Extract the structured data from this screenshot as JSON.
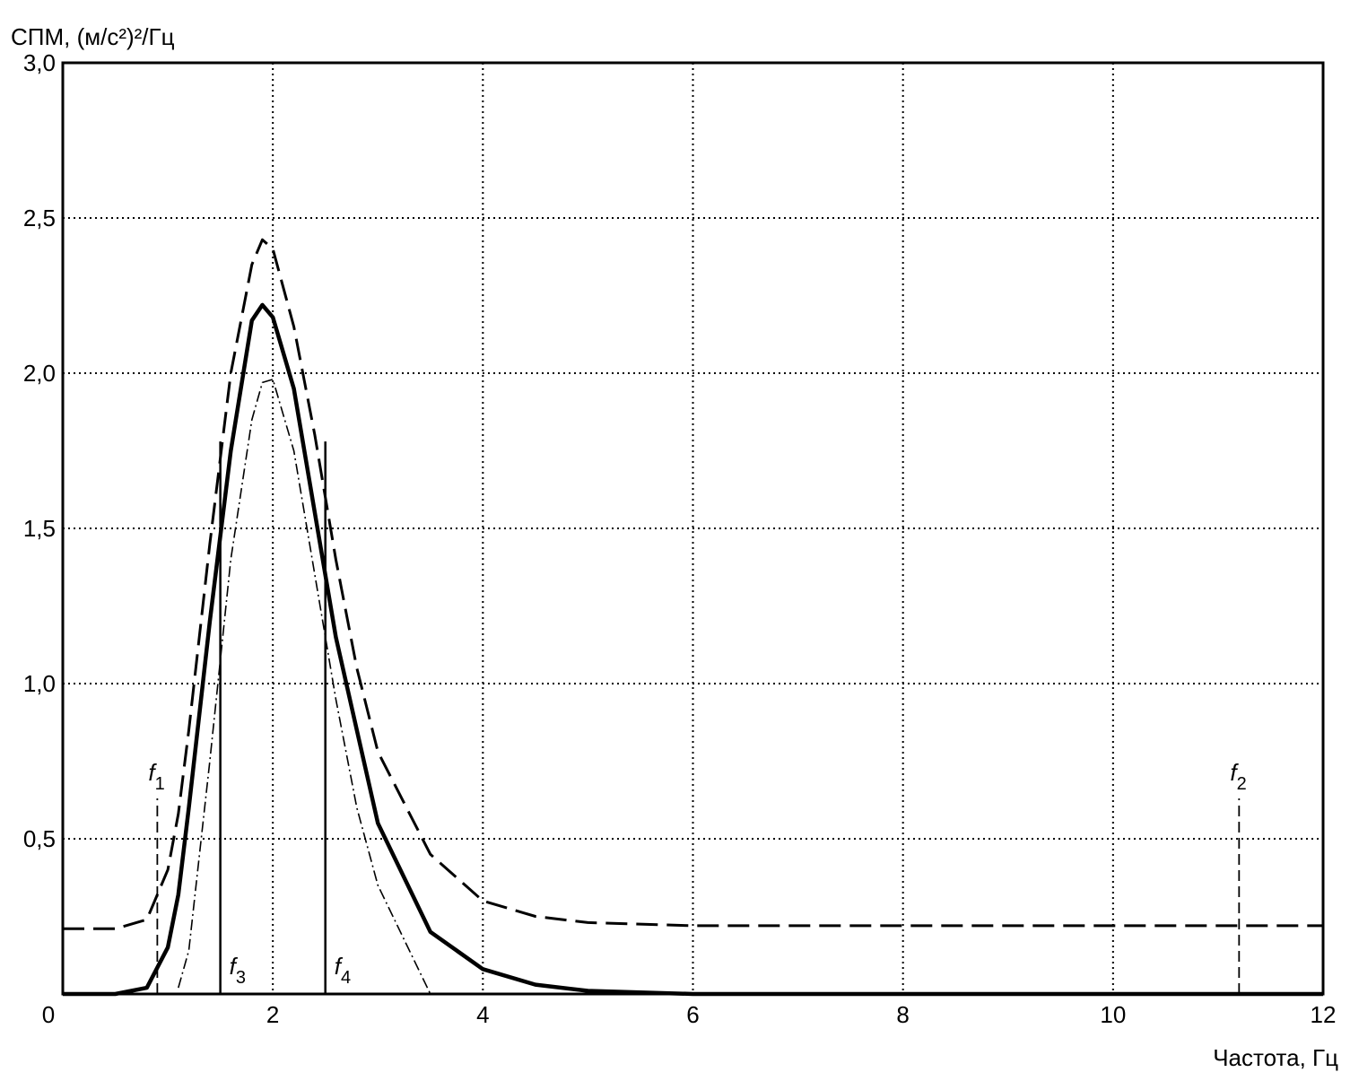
{
  "chart_data": {
    "type": "line",
    "ylabel": "СПМ, (м/с²)²/Гц",
    "xlabel": "Частота, Гц",
    "x": [
      0,
      0.5,
      0.8,
      1.0,
      1.1,
      1.2,
      1.4,
      1.6,
      1.8,
      1.9,
      2.0,
      2.2,
      2.4,
      2.6,
      2.8,
      3.0,
      3.5,
      4.0,
      4.5,
      5.0,
      6,
      8,
      10,
      12
    ],
    "series": [
      {
        "color": "#000000",
        "style": "solid",
        "values": [
          0,
          0,
          0.02,
          0.15,
          0.32,
          0.6,
          1.2,
          1.75,
          2.17,
          2.22,
          2.18,
          1.95,
          1.55,
          1.15,
          0.85,
          0.55,
          0.2,
          0.08,
          0.03,
          0.01,
          0,
          0,
          0,
          0
        ]
      },
      {
        "color": "#000000",
        "style": "dashed",
        "values": [
          0.21,
          0.21,
          0.24,
          0.4,
          0.58,
          0.85,
          1.45,
          2.0,
          2.35,
          2.43,
          2.4,
          2.15,
          1.8,
          1.4,
          1.05,
          0.78,
          0.45,
          0.3,
          0.25,
          0.23,
          0.22,
          0.22,
          0.22,
          0.22
        ]
      },
      {
        "color": "#000000",
        "style": "dashdot",
        "values": [
          null,
          null,
          null,
          null,
          0.02,
          0.14,
          0.75,
          1.4,
          1.85,
          1.97,
          1.98,
          1.75,
          1.35,
          0.95,
          0.6,
          0.35,
          0,
          null,
          null,
          null,
          null,
          null,
          null,
          null
        ]
      }
    ],
    "markers": [
      {
        "label": "f",
        "sub": "1",
        "x": 0.9,
        "y": 0.63,
        "style": "dashed"
      },
      {
        "label": "f",
        "sub": "2",
        "x": 11.2,
        "y": 0.63,
        "style": "dashed"
      },
      {
        "label": "f",
        "sub": "3",
        "x": 1.5,
        "y": 1.78,
        "style": "solid"
      },
      {
        "label": "f",
        "sub": "4",
        "x": 2.5,
        "y": 1.78,
        "style": "solid"
      }
    ],
    "xlim": [
      0,
      12
    ],
    "ylim": [
      0,
      3
    ],
    "xticks": [
      0,
      2,
      4,
      6,
      8,
      10,
      12
    ],
    "yticks": [
      {
        "value": 0.5,
        "label": "0,5"
      },
      {
        "value": 1,
        "label": "1,0"
      },
      {
        "value": 1.5,
        "label": "1,5"
      },
      {
        "value": 2,
        "label": "2,0"
      },
      {
        "value": 2.5,
        "label": "2,5"
      },
      {
        "value": 3,
        "label": "3,0"
      }
    ],
    "grid": true
  }
}
